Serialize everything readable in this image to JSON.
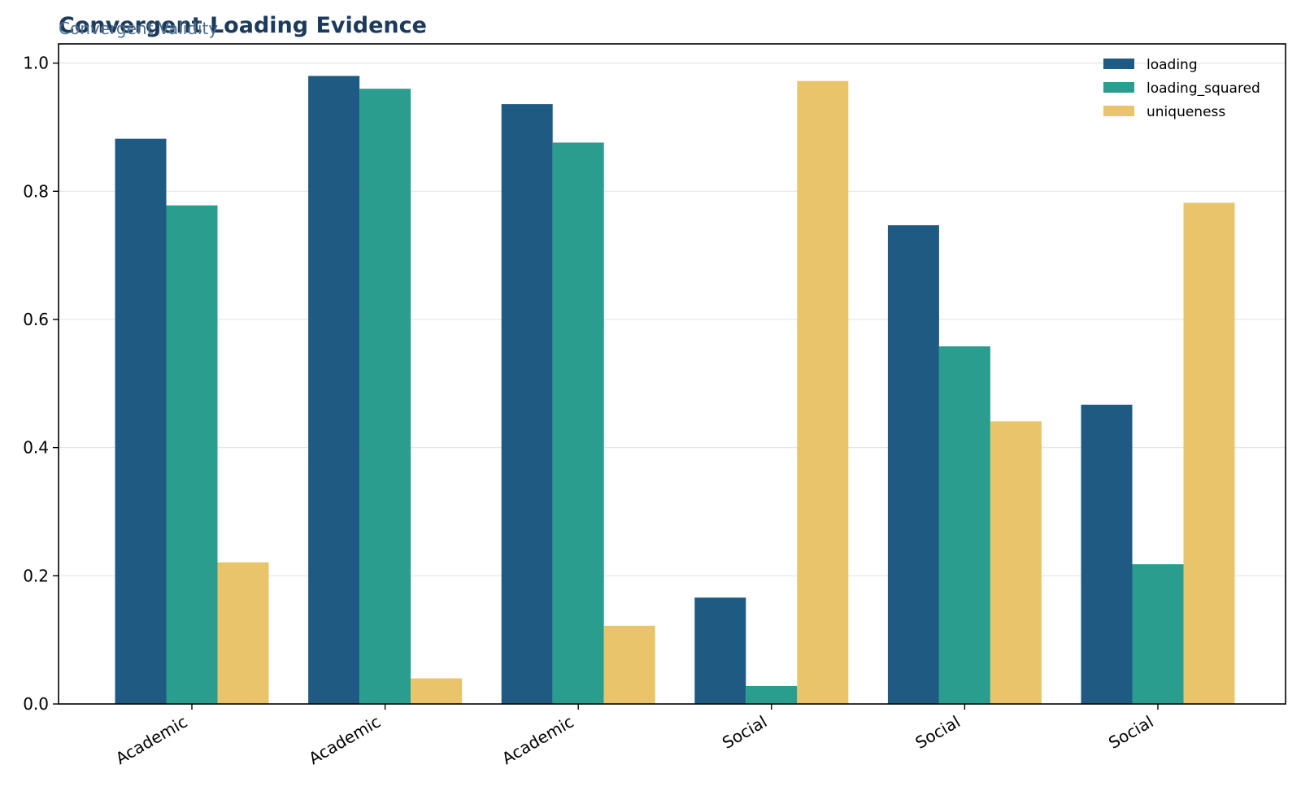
{
  "chart_data": {
    "type": "bar",
    "title": "Convergent Loading Evidence",
    "subtitle": "Convergent Validity",
    "xlabel": "",
    "ylabel": "",
    "categories": [
      "Academic",
      "Academic",
      "Academic",
      "Social",
      "Social",
      "Social"
    ],
    "series": [
      {
        "name": "loading",
        "color": "#1f5a82",
        "values": [
          0.882,
          0.98,
          0.936,
          0.166,
          0.747,
          0.467
        ]
      },
      {
        "name": "loading_squared",
        "color": "#2a9d8f",
        "values": [
          0.778,
          0.96,
          0.876,
          0.028,
          0.558,
          0.218
        ]
      },
      {
        "name": "uniqueness",
        "color": "#e9c46a",
        "values": [
          0.221,
          0.04,
          0.122,
          0.972,
          0.441,
          0.782
        ]
      }
    ],
    "ylim": [
      0,
      1.03
    ],
    "yticks": [
      "0.0",
      "0.2",
      "0.4",
      "0.6",
      "0.8",
      "1.0"
    ],
    "grid": "horizontal",
    "legend_position": "top-right"
  }
}
